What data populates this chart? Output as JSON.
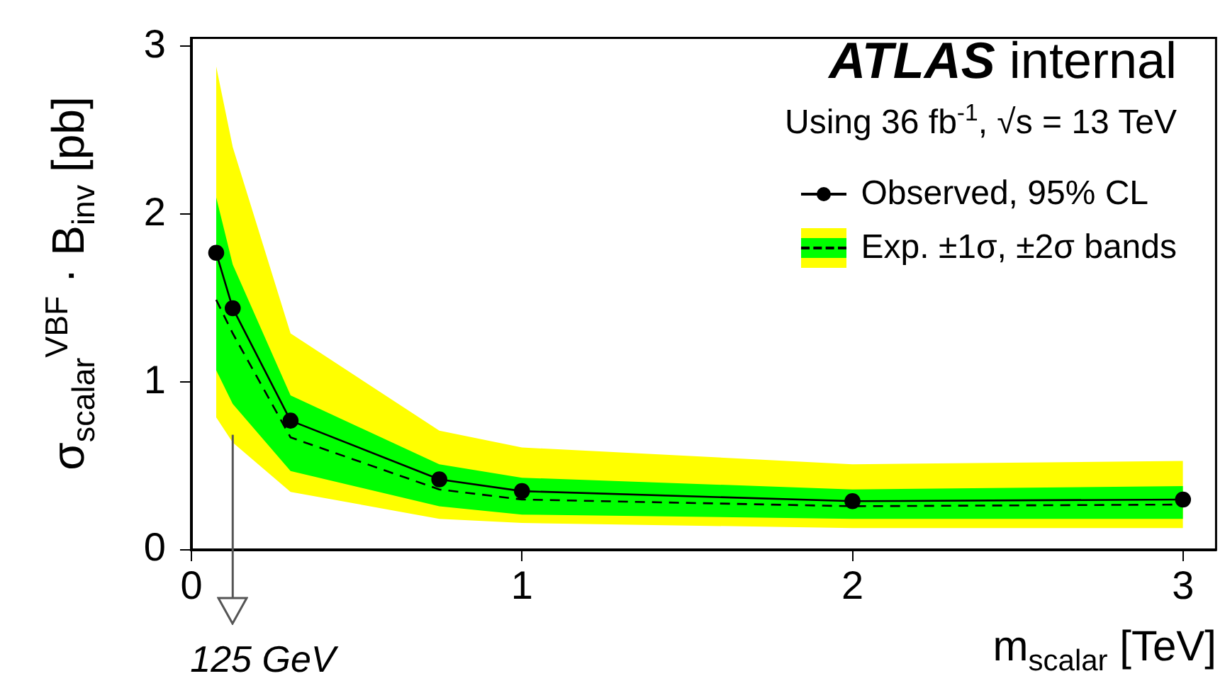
{
  "chart_data": {
    "type": "line",
    "title": "ATLAS internal",
    "xlabel": "m$_{scalar}$ [TeV]",
    "ylabel": "σ$_{scalar}$$^{VBF}$ · B$_{inv}$ [pb]",
    "annotations": [
      "Using 36 fb$^{-1}$, √s = 13 TeV"
    ],
    "ref_lines": [
      {
        "axis": "x",
        "value": 0.125,
        "label": "125 GeV",
        "color": "#555555"
      }
    ],
    "x": [
      0.075,
      0.125,
      0.3,
      0.75,
      1,
      2,
      3
    ],
    "series": [
      {
        "color": "#ffff00",
        "values": [
          null,
          null,
          null,
          null,
          null,
          null,
          null
        ],
        "lower": [
          0.79,
          0.64,
          0.345,
          0.185,
          0.16,
          0.13,
          0.13
        ],
        "upper": [
          2.88,
          2.4,
          1.29,
          0.71,
          0.61,
          0.51,
          0.53
        ]
      },
      {
        "color": "#00ff00",
        "values": [
          null,
          null,
          null,
          null,
          null,
          null,
          null
        ],
        "lower": [
          1.07,
          0.87,
          0.47,
          0.26,
          0.21,
          0.185,
          0.185
        ],
        "upper": [
          2.1,
          1.7,
          0.92,
          0.51,
          0.43,
          0.36,
          0.38
        ]
      },
      {
        "name": "Exp. ±1σ, ±2σ bands",
        "color": "#000000",
        "line_style": "dashed",
        "marker": "none",
        "values": [
          1.49,
          1.29,
          0.67,
          0.36,
          0.3,
          0.26,
          0.27
        ]
      },
      {
        "name": "Observed, 95% CL",
        "color": "#000000",
        "line_style": "solid",
        "marker": "circle",
        "values": [
          1.77,
          1.44,
          0.77,
          0.42,
          0.35,
          0.29,
          0.3
        ]
      }
    ],
    "xlim": [
      0,
      3.1
    ],
    "xticks": [
      0,
      1,
      2,
      3
    ],
    "ylim": [
      0,
      3.05
    ],
    "yticks": [
      0,
      1,
      2,
      3
    ],
    "grid": false,
    "legend": "top right"
  }
}
